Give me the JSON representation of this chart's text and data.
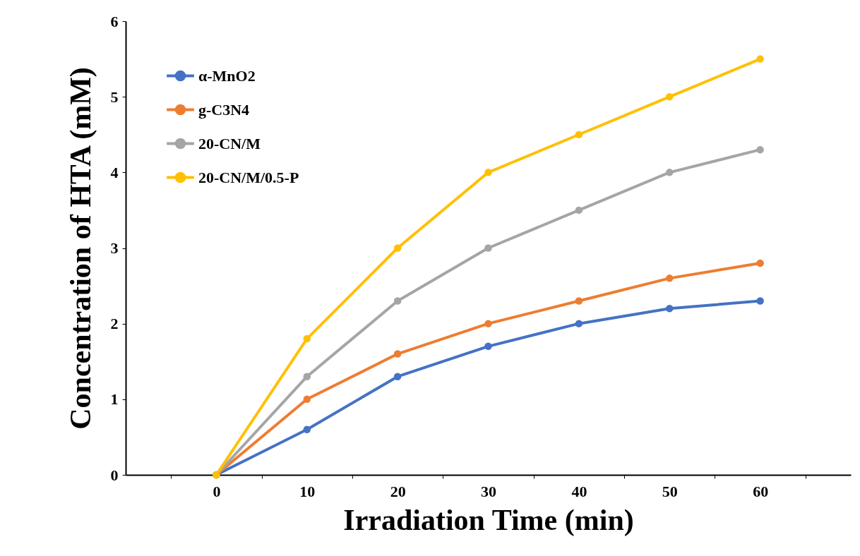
{
  "chart_data": {
    "type": "line",
    "xlabel": "Irradiation Time (min)",
    "ylabel": "Concentration of HTA (mM)",
    "categories": [
      "0",
      "10",
      "20",
      "30",
      "40",
      "50",
      "60"
    ],
    "series": [
      {
        "name": "α-MnO2",
        "color": "#4472c4",
        "values": [
          0,
          0.6,
          1.3,
          1.7,
          2.0,
          2.2,
          2.3
        ]
      },
      {
        "name": "g-C3N4",
        "color": "#ed7d31",
        "values": [
          0,
          1.0,
          1.6,
          2.0,
          2.3,
          2.6,
          2.8
        ]
      },
      {
        "name": "20-CN/M",
        "color": "#a5a5a5",
        "values": [
          0,
          1.3,
          2.3,
          3.0,
          3.5,
          4.0,
          4.3
        ]
      },
      {
        "name": "20-CN/M/0.5-P",
        "color": "#ffc000",
        "values": [
          0,
          1.8,
          3.0,
          4.0,
          4.5,
          5.0,
          5.5
        ]
      }
    ],
    "ylim": [
      0,
      6
    ],
    "yticks": [
      0,
      1,
      2,
      3,
      4,
      5,
      6
    ],
    "grid": false,
    "legend": "top left",
    "marker": "circle",
    "line_style": "solid"
  }
}
